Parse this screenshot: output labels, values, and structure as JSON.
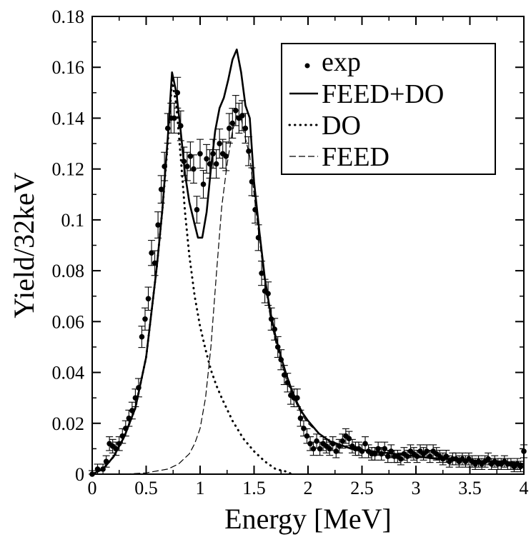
{
  "chart_data": {
    "type": "line",
    "title": "",
    "xlabel": "Energy [MeV]",
    "ylabel": "Yield/32keV",
    "xlim": [
      0,
      4
    ],
    "ylim": [
      0,
      0.18
    ],
    "x_ticks": [
      "0",
      "0.5",
      "1",
      "1.5",
      "2",
      "2.5",
      "3",
      "3.5",
      "4"
    ],
    "y_ticks": [
      "0",
      "0.02",
      "0.04",
      "0.06",
      "0.08",
      "0.1",
      "0.12",
      "0.14",
      "0.16",
      "0.18"
    ],
    "grid": false,
    "legend_position": "top-right",
    "legend": [
      {
        "label": "exp",
        "style": "dot"
      },
      {
        "label": "FEED+DO",
        "style": "solid"
      },
      {
        "label": "DO",
        "style": "dotted"
      },
      {
        "label": "FEED",
        "style": "dashed"
      }
    ],
    "exp": {
      "x": [
        0.0,
        0.05,
        0.1,
        0.13,
        0.16,
        0.19,
        0.22,
        0.25,
        0.28,
        0.31,
        0.34,
        0.37,
        0.4,
        0.43,
        0.46,
        0.49,
        0.52,
        0.55,
        0.58,
        0.61,
        0.64,
        0.67,
        0.7,
        0.73,
        0.76,
        0.79,
        0.82,
        0.85,
        0.88,
        0.91,
        0.94,
        0.97,
        1.0,
        1.03,
        1.06,
        1.09,
        1.12,
        1.15,
        1.18,
        1.21,
        1.24,
        1.27,
        1.3,
        1.33,
        1.36,
        1.39,
        1.42,
        1.45,
        1.48,
        1.51,
        1.54,
        1.57,
        1.6,
        1.63,
        1.66,
        1.69,
        1.72,
        1.75,
        1.78,
        1.81,
        1.84,
        1.87,
        1.9,
        1.93,
        1.96,
        1.99,
        2.02,
        2.05,
        2.08,
        2.11,
        2.14,
        2.17,
        2.2,
        2.23,
        2.26,
        2.29,
        2.32,
        2.35,
        2.38,
        2.41,
        2.44,
        2.47,
        2.5,
        2.53,
        2.56,
        2.59,
        2.62,
        2.65,
        2.68,
        2.71,
        2.74,
        2.77,
        2.8,
        2.83,
        2.86,
        2.89,
        2.92,
        2.95,
        2.98,
        3.01,
        3.04,
        3.07,
        3.1,
        3.13,
        3.16,
        3.19,
        3.22,
        3.25,
        3.28,
        3.31,
        3.34,
        3.37,
        3.4,
        3.43,
        3.46,
        3.49,
        3.52,
        3.55,
        3.58,
        3.61,
        3.64,
        3.67,
        3.7,
        3.73,
        3.76,
        3.79,
        3.82,
        3.85,
        3.88,
        3.91,
        3.94,
        3.97,
        4.0
      ],
      "y": [
        0.0,
        0.002,
        0.002,
        0.005,
        0.012,
        0.011,
        0.01,
        0.012,
        0.015,
        0.018,
        0.022,
        0.025,
        0.03,
        0.034,
        0.054,
        0.061,
        0.069,
        0.087,
        0.083,
        0.098,
        0.112,
        0.121,
        0.136,
        0.14,
        0.14,
        0.15,
        0.137,
        0.123,
        0.121,
        0.125,
        0.12,
        0.104,
        0.126,
        0.114,
        0.124,
        0.122,
        0.126,
        0.122,
        0.13,
        0.126,
        0.125,
        0.136,
        0.138,
        0.143,
        0.14,
        0.141,
        0.136,
        0.127,
        0.115,
        0.104,
        0.093,
        0.079,
        0.072,
        0.071,
        0.061,
        0.057,
        0.05,
        0.045,
        0.039,
        0.036,
        0.031,
        0.03,
        0.03,
        0.022,
        0.018,
        0.015,
        0.012,
        0.01,
        0.013,
        0.01,
        0.012,
        0.011,
        0.01,
        0.012,
        0.009,
        0.011,
        0.013,
        0.015,
        0.014,
        0.011,
        0.01,
        0.01,
        0.009,
        0.012,
        0.009,
        0.008,
        0.008,
        0.01,
        0.008,
        0.01,
        0.007,
        0.009,
        0.007,
        0.007,
        0.006,
        0.008,
        0.007,
        0.009,
        0.008,
        0.007,
        0.009,
        0.008,
        0.009,
        0.007,
        0.009,
        0.008,
        0.007,
        0.006,
        0.007,
        0.005,
        0.006,
        0.006,
        0.005,
        0.006,
        0.005,
        0.006,
        0.005,
        0.004,
        0.005,
        0.004,
        0.005,
        0.006,
        0.004,
        0.005,
        0.004,
        0.004,
        0.005,
        0.004,
        0.004,
        0.003,
        0.004,
        0.003,
        0.009
      ]
    },
    "series": [
      {
        "label": "FEED+DO",
        "x": [
          0.0,
          0.1,
          0.2,
          0.3,
          0.4,
          0.5,
          0.6,
          0.65,
          0.7,
          0.74,
          0.78,
          0.82,
          0.86,
          0.9,
          0.94,
          0.98,
          1.02,
          1.06,
          1.1,
          1.14,
          1.18,
          1.22,
          1.26,
          1.3,
          1.34,
          1.38,
          1.42,
          1.46,
          1.5,
          1.55,
          1.6,
          1.65,
          1.7,
          1.75,
          1.8,
          1.85,
          1.9,
          1.95,
          2.0,
          2.1,
          2.2,
          2.4,
          2.6,
          2.8,
          3.0,
          3.2,
          3.4,
          3.6,
          3.8,
          4.0
        ],
        "y": [
          0.0,
          0.002,
          0.007,
          0.015,
          0.026,
          0.046,
          0.082,
          0.104,
          0.132,
          0.158,
          0.15,
          0.135,
          0.118,
          0.107,
          0.1,
          0.093,
          0.093,
          0.103,
          0.12,
          0.135,
          0.144,
          0.148,
          0.155,
          0.163,
          0.167,
          0.158,
          0.145,
          0.14,
          0.115,
          0.095,
          0.077,
          0.064,
          0.054,
          0.046,
          0.039,
          0.033,
          0.028,
          0.024,
          0.021,
          0.016,
          0.013,
          0.01,
          0.009,
          0.008,
          0.007,
          0.006,
          0.006,
          0.005,
          0.005,
          0.004
        ]
      },
      {
        "label": "DO",
        "x": [
          0.0,
          0.1,
          0.2,
          0.3,
          0.4,
          0.5,
          0.6,
          0.65,
          0.7,
          0.74,
          0.78,
          0.82,
          0.86,
          0.9,
          0.95,
          1.0,
          1.05,
          1.1,
          1.15,
          1.2,
          1.3,
          1.4,
          1.5,
          1.6,
          1.7,
          1.8,
          1.85
        ],
        "y": [
          0.0,
          0.002,
          0.007,
          0.015,
          0.026,
          0.046,
          0.082,
          0.104,
          0.13,
          0.155,
          0.145,
          0.125,
          0.103,
          0.086,
          0.07,
          0.058,
          0.049,
          0.041,
          0.035,
          0.03,
          0.021,
          0.014,
          0.009,
          0.005,
          0.002,
          0.001,
          0.0
        ]
      },
      {
        "label": "FEED",
        "x": [
          0.3,
          0.5,
          0.7,
          0.8,
          0.9,
          0.95,
          1.0,
          1.05,
          1.1,
          1.15,
          1.2,
          1.25,
          1.3,
          1.34,
          1.38,
          1.42,
          1.46,
          1.5,
          1.55,
          1.6,
          1.65,
          1.7,
          1.75,
          1.8,
          1.85,
          1.9,
          1.95,
          2.0,
          2.1,
          2.2,
          2.4,
          2.6,
          2.8,
          3.0,
          3.2,
          3.4,
          3.6,
          3.8,
          4.0
        ],
        "y": [
          0.0,
          0.0005,
          0.002,
          0.004,
          0.008,
          0.012,
          0.018,
          0.03,
          0.05,
          0.078,
          0.105,
          0.122,
          0.135,
          0.141,
          0.14,
          0.132,
          0.125,
          0.11,
          0.092,
          0.075,
          0.062,
          0.052,
          0.044,
          0.037,
          0.032,
          0.027,
          0.023,
          0.02,
          0.016,
          0.013,
          0.01,
          0.009,
          0.008,
          0.007,
          0.006,
          0.006,
          0.005,
          0.005,
          0.004
        ]
      }
    ]
  }
}
